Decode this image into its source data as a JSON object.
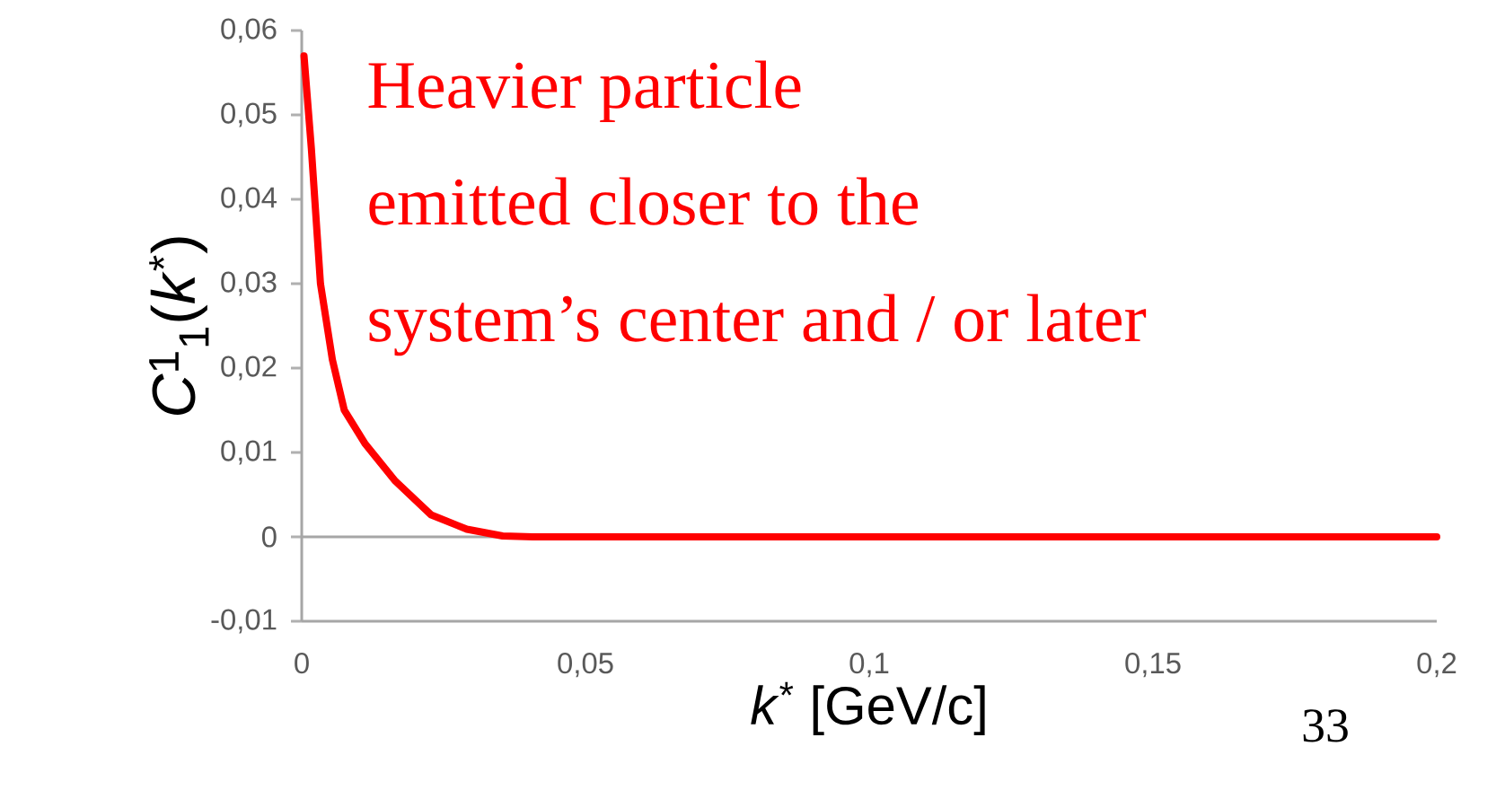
{
  "chart_data": {
    "type": "line",
    "xlabel": "*k*$^{*}$ [GeV/c]",
    "ylabel": "*C*$^{1}$$_{1}$(*k*$^{*}$)",
    "annotations": [
      "Heavier particle",
      "emitted closer to the",
      "system’s center and / or later",
      "33"
    ],
    "x": [
      0.0004,
      0.0017,
      0.0033,
      0.0054,
      0.0075,
      0.0112,
      0.0165,
      0.0228,
      0.0291,
      0.0354,
      0.0407,
      0.1,
      0.15,
      0.2
    ],
    "series": [
      {
        "color": "#ff0000",
        "values": [
          0.057,
          0.046,
          0.03,
          0.021,
          0.015,
          0.011,
          0.0066,
          0.0026,
          0.0009,
          0.0001,
          0,
          0,
          0,
          0
        ]
      }
    ],
    "marker": "none",
    "line_style": "solid",
    "xlim": [
      0,
      0.2
    ],
    "xticks": [
      0,
      {
        "value": 0.05,
        "label": "0,05"
      },
      {
        "value": 0.1,
        "label": "0,1"
      },
      {
        "value": 0.15,
        "label": "0,15"
      },
      {
        "value": 0.2,
        "label": "0,2"
      }
    ],
    "ylim": [
      -0.01,
      0.06
    ],
    "yticks": [
      {
        "value": -0.01,
        "label": "-0,01"
      },
      0,
      {
        "value": 0.01,
        "label": "0,01"
      },
      {
        "value": 0.02,
        "label": "0,02"
      },
      {
        "value": 0.03,
        "label": "0,03"
      },
      {
        "value": 0.04,
        "label": "0,04"
      },
      {
        "value": 0.05,
        "label": "0,05"
      },
      {
        "value": 0.06,
        "label": "0,06"
      }
    ],
    "ref_lines": [
      {
        "axis": "y",
        "value": 0,
        "color": "#a6a6a6"
      }
    ]
  }
}
